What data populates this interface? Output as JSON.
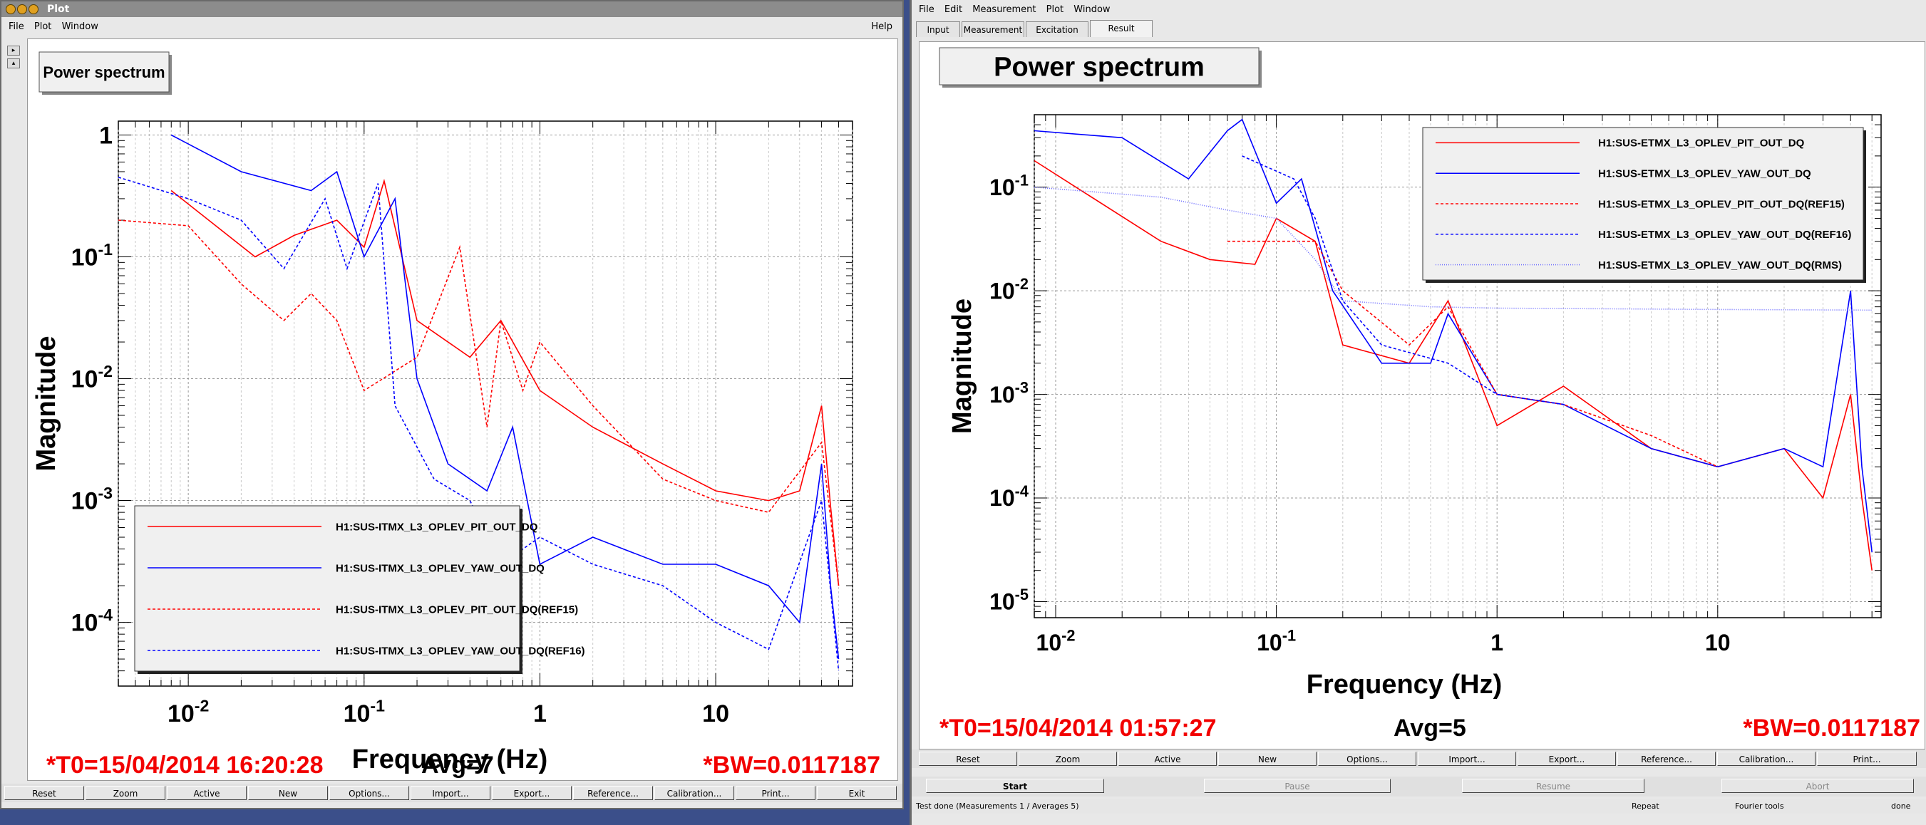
{
  "left_window": {
    "title": "Plot",
    "menu": [
      "File",
      "Plot",
      "Window"
    ],
    "help": "Help",
    "plot_title": "Power spectrum",
    "footer": {
      "t0": "*T0=15/04/2014 16:20:28",
      "avg": "Avg=7",
      "bw": "*BW=0.0117187"
    },
    "buttons": [
      "Reset",
      "Zoom",
      "Active",
      "New",
      "Options...",
      "Import...",
      "Export...",
      "Reference...",
      "Calibration...",
      "Print...",
      "Exit"
    ]
  },
  "right_window": {
    "menu": [
      "File",
      "Edit",
      "Measurement",
      "Plot",
      "Window"
    ],
    "tabs": [
      "Input",
      "Measurement",
      "Excitation",
      "Result"
    ],
    "active_tab": "Result",
    "plot_title": "Power spectrum",
    "footer": {
      "t0": "*T0=15/04/2014 01:57:27",
      "avg": "Avg=5",
      "bw": "*BW=0.0117187"
    },
    "buttons": [
      "Reset",
      "Zoom",
      "Active",
      "New",
      "Options...",
      "Import...",
      "Export...",
      "Reference...",
      "Calibration...",
      "Print..."
    ],
    "controls": [
      "Start",
      "Pause",
      "Resume",
      "Abort"
    ],
    "status": {
      "message": "Test done (Measurements 1 / Averages 5)",
      "repeat": "Repeat",
      "tools": "Fourier tools",
      "state": "done"
    }
  },
  "chart_data": [
    {
      "type": "line",
      "title": "Power spectrum",
      "xlabel": "Frequency (Hz)",
      "ylabel": "Magnitude",
      "x_scale": "log",
      "y_scale": "log",
      "xlim": [
        0.004,
        60
      ],
      "ylim": [
        3e-05,
        1.3
      ],
      "x_ticks": [
        0.01,
        0.1,
        1,
        10
      ],
      "x_tick_labels": [
        "10-2",
        "10-1",
        "1",
        "10"
      ],
      "y_ticks": [
        0.0001,
        0.001,
        0.01,
        0.1,
        1
      ],
      "y_tick_labels": [
        "10-4",
        "10-3",
        "10-2",
        "10-1",
        "1"
      ],
      "grid": true,
      "legend_position": "bottom-left",
      "series": [
        {
          "name": "H1:SUS-ITMX_L3_OPLEV_PIT_OUT_DQ",
          "color": "#ff0000",
          "style": "solid",
          "x": [
            0.008,
            0.024,
            0.04,
            0.07,
            0.1,
            0.13,
            0.2,
            0.4,
            0.6,
            1,
            2,
            5,
            10,
            20,
            30,
            40,
            45,
            50
          ],
          "y": [
            0.35,
            0.1,
            0.15,
            0.2,
            0.12,
            0.42,
            0.03,
            0.015,
            0.03,
            0.008,
            0.004,
            0.002,
            0.0012,
            0.001,
            0.0012,
            0.006,
            0.0009,
            0.0002
          ]
        },
        {
          "name": "H1:SUS-ITMX_L3_OPLEV_YAW_OUT_DQ",
          "color": "#0000ff",
          "style": "solid",
          "x": [
            0.008,
            0.02,
            0.05,
            0.07,
            0.1,
            0.15,
            0.2,
            0.3,
            0.5,
            0.7,
            1,
            2,
            5,
            10,
            20,
            30,
            40,
            45,
            50
          ],
          "y": [
            1.0,
            0.5,
            0.35,
            0.5,
            0.1,
            0.3,
            0.01,
            0.002,
            0.0012,
            0.004,
            0.0003,
            0.0005,
            0.0003,
            0.0003,
            0.0002,
            0.0001,
            0.002,
            0.0002,
            5e-05
          ]
        },
        {
          "name": "H1:SUS-ITMX_L3_OPLEV_PIT_OUT_DQ(REF15)",
          "color": "#ff0000",
          "style": "dashed",
          "x": [
            0.004,
            0.01,
            0.02,
            0.035,
            0.05,
            0.07,
            0.1,
            0.2,
            0.35,
            0.5,
            0.6,
            0.8,
            1,
            2,
            5,
            10,
            20,
            40,
            50
          ],
          "y": [
            0.2,
            0.18,
            0.06,
            0.03,
            0.05,
            0.03,
            0.008,
            0.015,
            0.12,
            0.004,
            0.03,
            0.008,
            0.02,
            0.006,
            0.0015,
            0.001,
            0.0008,
            0.003,
            0.0002
          ]
        },
        {
          "name": "H1:SUS-ITMX_L3_OPLEV_YAW_OUT_DQ(REF16)",
          "color": "#0000ff",
          "style": "dashed",
          "x": [
            0.004,
            0.01,
            0.02,
            0.035,
            0.06,
            0.08,
            0.12,
            0.15,
            0.25,
            0.4,
            0.6,
            1,
            2,
            5,
            10,
            20,
            40,
            50
          ],
          "y": [
            0.45,
            0.3,
            0.2,
            0.08,
            0.3,
            0.08,
            0.4,
            0.006,
            0.0015,
            0.001,
            0.0003,
            0.0005,
            0.0003,
            0.0002,
            0.0001,
            6e-05,
            0.001,
            4e-05
          ]
        }
      ]
    },
    {
      "type": "line",
      "title": "Power spectrum",
      "xlabel": "Frequency (Hz)",
      "ylabel": "Magnitude",
      "x_scale": "log",
      "y_scale": "log",
      "xlim": [
        0.008,
        55
      ],
      "ylim": [
        7e-06,
        0.5
      ],
      "x_ticks": [
        0.01,
        0.1,
        1,
        10
      ],
      "x_tick_labels": [
        "10-2",
        "10-1",
        "1",
        "10"
      ],
      "y_ticks": [
        1e-05,
        0.0001,
        0.001,
        0.01,
        0.1
      ],
      "y_tick_labels": [
        "10-5",
        "10-4",
        "10-3",
        "10-2",
        "10-1"
      ],
      "grid": true,
      "legend_position": "top-right",
      "series": [
        {
          "name": "H1:SUS-ETMX_L3_OPLEV_PIT_OUT_DQ",
          "color": "#ff0000",
          "style": "solid",
          "x": [
            0.008,
            0.03,
            0.05,
            0.08,
            0.1,
            0.15,
            0.2,
            0.4,
            0.6,
            1,
            2,
            5,
            10,
            20,
            30,
            40,
            45,
            50
          ],
          "y": [
            0.18,
            0.03,
            0.02,
            0.018,
            0.05,
            0.03,
            0.003,
            0.002,
            0.008,
            0.0005,
            0.0012,
            0.0003,
            0.0002,
            0.0003,
            0.0001,
            0.001,
            0.0001,
            2e-05
          ]
        },
        {
          "name": "H1:SUS-ETMX_L3_OPLEV_YAW_OUT_DQ",
          "color": "#0000ff",
          "style": "solid",
          "x": [
            0.008,
            0.02,
            0.04,
            0.06,
            0.07,
            0.1,
            0.13,
            0.18,
            0.3,
            0.5,
            0.6,
            1,
            2,
            5,
            10,
            20,
            30,
            40,
            45,
            50
          ],
          "y": [
            0.35,
            0.3,
            0.12,
            0.35,
            0.45,
            0.07,
            0.12,
            0.01,
            0.002,
            0.002,
            0.006,
            0.001,
            0.0008,
            0.0003,
            0.0002,
            0.0003,
            0.0002,
            0.01,
            0.0002,
            3e-05
          ]
        },
        {
          "name": "H1:SUS-ETMX_L3_OPLEV_PIT_OUT_DQ(REF15)",
          "color": "#ff0000",
          "style": "dashed",
          "x": [
            0.06,
            0.1,
            0.15,
            0.2,
            0.4,
            0.6,
            1,
            2,
            5,
            10
          ],
          "y": [
            0.03,
            0.03,
            0.03,
            0.01,
            0.003,
            0.007,
            0.001,
            0.0008,
            0.0004,
            0.0002
          ]
        },
        {
          "name": "H1:SUS-ETMX_L3_OPLEV_YAW_OUT_DQ(REF16)",
          "color": "#0000ff",
          "style": "dashed",
          "x": [
            0.07,
            0.12,
            0.15,
            0.2,
            0.3,
            0.6,
            1,
            2
          ],
          "y": [
            0.2,
            0.12,
            0.05,
            0.008,
            0.003,
            0.002,
            0.001,
            0.0008
          ]
        },
        {
          "name": "H1:SUS-ETMX_L3_OPLEV_YAW_OUT_DQ(RMS)",
          "color": "#6a6aff",
          "style": "dotted",
          "x": [
            0.008,
            0.03,
            0.06,
            0.1,
            0.15,
            0.2,
            0.5,
            1,
            10,
            50
          ],
          "y": [
            0.1,
            0.08,
            0.06,
            0.05,
            0.02,
            0.008,
            0.007,
            0.0068,
            0.0066,
            0.0065
          ]
        }
      ]
    }
  ]
}
